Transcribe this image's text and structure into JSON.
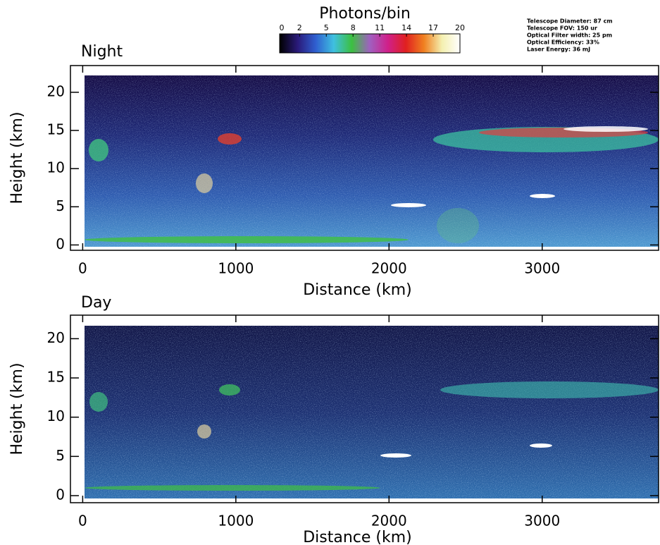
{
  "colorbar": {
    "label": "Photons/bin",
    "lim": [
      0,
      20
    ],
    "ticks": [
      0,
      2,
      5,
      8,
      11,
      14,
      17,
      20
    ],
    "colors": [
      "#000000",
      "#2a1a7a",
      "#2f5fd0",
      "#3fc0e0",
      "#3cc040",
      "#a060c0",
      "#d0208a",
      "#e02020",
      "#f08020",
      "#f4f0b0",
      "#ffffff"
    ]
  },
  "notes": [
    "Telescope Diameter: 87 cm",
    "Telescope FOV: 150 ur",
    "Optical Filter width: 25 pm",
    "Optical Efficiency: 33%",
    "Laser Energy: 36 mJ"
  ],
  "chart_data": [
    {
      "type": "image",
      "title": "Night",
      "xlabel": "Distance (km)",
      "ylabel": "Height (km)",
      "xlim": [
        -80,
        3760
      ],
      "ylim": [
        -0.7,
        23.5
      ],
      "xticks": [
        0,
        1000,
        2000,
        3000
      ],
      "yticks": [
        0,
        5,
        10,
        15,
        20
      ]
    },
    {
      "type": "image",
      "title": "Day",
      "xlabel": "Distance (km)",
      "ylabel": "Height (km)",
      "xlim": [
        -80,
        3760
      ],
      "ylim": [
        -0.9,
        23
      ],
      "xticks": [
        0,
        1000,
        2000,
        3000
      ],
      "yticks": [
        0,
        5,
        10,
        15,
        20
      ]
    }
  ]
}
